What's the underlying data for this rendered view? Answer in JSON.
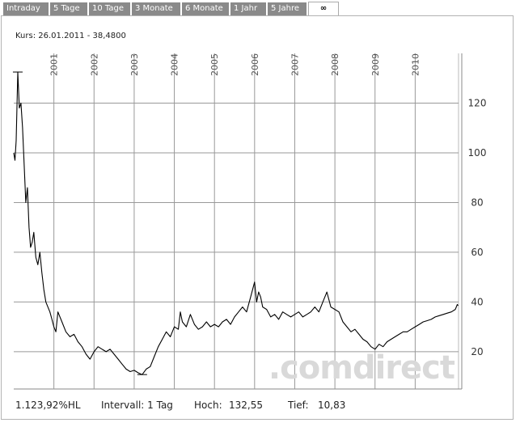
{
  "tabs": [
    {
      "label": "Intraday",
      "active": false
    },
    {
      "label": "5 Tage",
      "active": false
    },
    {
      "label": "10 Tage",
      "active": false
    },
    {
      "label": "3 Monate",
      "active": false
    },
    {
      "label": "6 Monate",
      "active": false
    },
    {
      "label": "1 Jahr",
      "active": false
    },
    {
      "label": "5 Jahre",
      "active": false
    },
    {
      "label": "∞",
      "active": true
    }
  ],
  "kurs": "Kurs: 26.01.2011 - 38,4800",
  "watermark": ".comdirect",
  "footer": {
    "change": "1.123,92%HL",
    "intervall": "Intervall: 1 Tag",
    "hoch_label": "Hoch:",
    "hoch_value": "132,55",
    "tief_label": "Tief:",
    "tief_value": "10,83"
  },
  "colors": {
    "line": "#000000",
    "grid": "#999999",
    "tab_bg": "#8a8a8a",
    "watermark": "#d9d9d9"
  },
  "chart_data": {
    "type": "line",
    "title": "",
    "xlabel": "",
    "ylabel": "",
    "x_ticks": [
      "2001",
      "2002",
      "2003",
      "2004",
      "2005",
      "2006",
      "2007",
      "2008",
      "2009",
      "2010"
    ],
    "y_ticks": [
      20,
      40,
      60,
      80,
      100,
      120
    ],
    "ylim": [
      5,
      140
    ],
    "xlim": [
      2000.0,
      2011.08
    ],
    "grid": true,
    "y_axis_side": "right",
    "series": [
      {
        "x": [
          2000.0,
          2000.03,
          2000.06,
          2000.1,
          2000.14,
          2000.18,
          2000.22,
          2000.26,
          2000.3,
          2000.34,
          2000.38,
          2000.42,
          2000.46,
          2000.5,
          2000.55,
          2000.6,
          2000.65,
          2000.7,
          2000.75,
          2000.8,
          2000.85,
          2000.9,
          2000.95,
          2001.0,
          2001.05,
          2001.1,
          2001.2,
          2001.3,
          2001.4,
          2001.5,
          2001.6,
          2001.7,
          2001.8,
          2001.9,
          2002.0,
          2002.1,
          2002.2,
          2002.3,
          2002.4,
          2002.5,
          2002.6,
          2002.7,
          2002.8,
          2002.9,
          2003.0,
          2003.1,
          2003.2,
          2003.3,
          2003.4,
          2003.5,
          2003.6,
          2003.7,
          2003.8,
          2003.9,
          2004.0,
          2004.1,
          2004.15,
          2004.2,
          2004.3,
          2004.4,
          2004.5,
          2004.6,
          2004.7,
          2004.8,
          2004.9,
          2005.0,
          2005.1,
          2005.2,
          2005.3,
          2005.4,
          2005.5,
          2005.6,
          2005.7,
          2005.8,
          2005.9,
          2006.0,
          2006.05,
          2006.1,
          2006.15,
          2006.2,
          2006.3,
          2006.4,
          2006.5,
          2006.6,
          2006.7,
          2006.8,
          2006.9,
          2007.0,
          2007.1,
          2007.2,
          2007.3,
          2007.4,
          2007.5,
          2007.6,
          2007.7,
          2007.8,
          2007.9,
          2008.0,
          2008.1,
          2008.2,
          2008.3,
          2008.4,
          2008.5,
          2008.6,
          2008.7,
          2008.8,
          2008.9,
          2009.0,
          2009.1,
          2009.2,
          2009.3,
          2009.4,
          2009.5,
          2009.6,
          2009.7,
          2009.8,
          2009.9,
          2010.0,
          2010.1,
          2010.2,
          2010.3,
          2010.4,
          2010.5,
          2010.6,
          2010.7,
          2010.8,
          2010.9,
          2011.0,
          2011.05,
          2011.07
        ],
        "values": [
          100,
          97,
          105,
          132.5,
          118,
          120,
          110,
          95,
          80,
          86,
          70,
          62,
          64,
          68,
          58,
          55,
          60,
          52,
          45,
          40,
          38,
          36,
          33,
          30,
          28,
          36,
          32,
          28,
          26,
          27,
          24,
          22,
          19,
          17,
          20,
          22,
          21,
          20,
          21,
          19,
          17,
          15,
          13,
          12,
          12.5,
          11.5,
          10.8,
          13,
          14,
          18,
          22,
          25,
          28,
          26,
          30,
          29,
          36,
          32,
          30,
          35,
          31,
          29,
          30,
          32,
          30,
          31,
          30,
          32,
          33,
          31,
          34,
          36,
          38,
          36,
          42,
          48,
          40,
          44,
          42,
          38,
          37,
          34,
          35,
          33,
          36,
          35,
          34,
          35,
          36,
          34,
          35,
          36,
          38,
          36,
          40,
          44,
          38,
          37,
          36,
          32,
          30,
          28,
          29,
          27,
          25,
          24,
          22,
          21,
          23,
          22,
          24,
          25,
          26,
          27,
          28,
          28,
          29,
          30,
          31,
          32,
          32.5,
          33,
          34,
          34.5,
          35,
          35.5,
          36,
          37,
          39,
          38.5
        ]
      }
    ]
  }
}
